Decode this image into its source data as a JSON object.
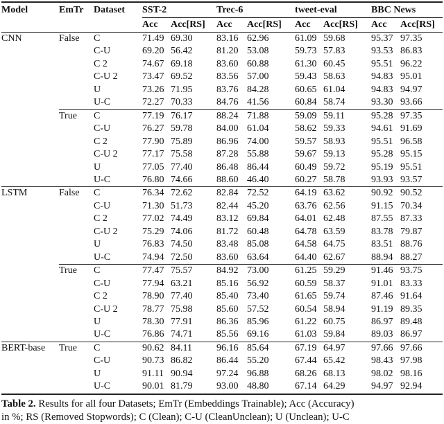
{
  "page": {
    "background": "#ffffff",
    "text_color": "#111111",
    "rule_color": "#222222"
  },
  "table": {
    "columns": {
      "model": "Model",
      "emtr": "EmTr",
      "dataset": "Dataset"
    },
    "groups": [
      {
        "label": "SST-2"
      },
      {
        "label": "Trec-6"
      },
      {
        "label": "tweet-eval"
      },
      {
        "label": "BBC News"
      }
    ],
    "subheaders": [
      "Acc",
      "Acc[RS]"
    ],
    "blocks": [
      {
        "model": "CNN",
        "emtr": "False",
        "rule": "none",
        "rows": [
          {
            "dataset": "C",
            "values": [
              "71.49",
              "69.30",
              "83.16",
              "62.96",
              "61.09",
              "59.68",
              "95.37",
              "97.35"
            ]
          },
          {
            "dataset": "C-U",
            "values": [
              "69.20",
              "56.42",
              "81.20",
              "53.08",
              "59.73",
              "57.83",
              "93.53",
              "86.83"
            ]
          },
          {
            "dataset": "C 2",
            "values": [
              "74.67",
              "69.18",
              "83.60",
              "60.88",
              "61.30",
              "60.45",
              "95.51",
              "96.22"
            ]
          },
          {
            "dataset": "C-U 2",
            "values": [
              "73.47",
              "69.52",
              "83.56",
              "57.00",
              "59.43",
              "58.63",
              "94.83",
              "95.01"
            ]
          },
          {
            "dataset": "U",
            "values": [
              "73.26",
              "71.95",
              "83.76",
              "84.28",
              "60.65",
              "61.04",
              "94.83",
              "94.97"
            ]
          },
          {
            "dataset": "U-C",
            "values": [
              "72.27",
              "70.33",
              "84.76",
              "41.56",
              "60.84",
              "58.74",
              "93.30",
              "93.66"
            ]
          }
        ]
      },
      {
        "model": "",
        "emtr": "True",
        "rule": "partial",
        "rows": [
          {
            "dataset": "C",
            "values": [
              "77.19",
              "76.17",
              "88.24",
              "71.88",
              "59.09",
              "59.11",
              "95.28",
              "97.35"
            ]
          },
          {
            "dataset": "C-U",
            "values": [
              "76.27",
              "59.78",
              "84.00",
              "61.04",
              "58.62",
              "59.33",
              "94.61",
              "91.69"
            ]
          },
          {
            "dataset": "C 2",
            "values": [
              "77.90",
              "75.89",
              "86.96",
              "74.00",
              "59.57",
              "58.93",
              "95.51",
              "96.58"
            ]
          },
          {
            "dataset": "C-U 2",
            "values": [
              "77.17",
              "75.58",
              "87.28",
              "55.88",
              "59.67",
              "59.13",
              "95.28",
              "95.15"
            ]
          },
          {
            "dataset": "U",
            "values": [
              "77.05",
              "77.40",
              "86.48",
              "86.44",
              "60.49",
              "59.72",
              "95.19",
              "95.51"
            ]
          },
          {
            "dataset": "U-C",
            "values": [
              "76.80",
              "74.66",
              "88.60",
              "46.40",
              "60.27",
              "58.78",
              "93.93",
              "93.57"
            ]
          }
        ]
      },
      {
        "model": "LSTM",
        "emtr": "False",
        "rule": "full",
        "rows": [
          {
            "dataset": "C",
            "values": [
              "76.34",
              "72.62",
              "82.84",
              "72.52",
              "64.19",
              "63.62",
              "90.92",
              "90.52"
            ]
          },
          {
            "dataset": "C-U",
            "values": [
              "71.30",
              "51.73",
              "82.44",
              "45.20",
              "63.76",
              "62.56",
              "91.15",
              "70.34"
            ]
          },
          {
            "dataset": "C 2",
            "values": [
              "77.02",
              "74.49",
              "83.12",
              "69.84",
              "64.01",
              "62.48",
              "87.55",
              "87.33"
            ]
          },
          {
            "dataset": "C-U 2",
            "values": [
              "75.29",
              "74.06",
              "81.72",
              "60.48",
              "64.78",
              "63.59",
              "83.78",
              "79.87"
            ]
          },
          {
            "dataset": "U",
            "values": [
              "76.83",
              "74.50",
              "83.48",
              "85.08",
              "64.58",
              "64.75",
              "83.51",
              "88.76"
            ]
          },
          {
            "dataset": "U-C",
            "values": [
              "74.94",
              "72.50",
              "83.60",
              "63.64",
              "64.40",
              "62.67",
              "88.94",
              "88.27"
            ]
          }
        ]
      },
      {
        "model": "",
        "emtr": "True",
        "rule": "partial",
        "rows": [
          {
            "dataset": "C",
            "values": [
              "77.47",
              "75.57",
              "84.92",
              "73.00",
              "61.25",
              "59.29",
              "91.46",
              "93.75"
            ]
          },
          {
            "dataset": "C-U",
            "values": [
              "77.94",
              "63.21",
              "85.16",
              "56.92",
              "60.59",
              "58.37",
              "91.01",
              "83.33"
            ]
          },
          {
            "dataset": "C 2",
            "values": [
              "78.90",
              "77.40",
              "85.40",
              "73.40",
              "61.65",
              "59.74",
              "87.46",
              "91.64"
            ]
          },
          {
            "dataset": "C-U 2",
            "values": [
              "78.77",
              "75.98",
              "85.60",
              "57.52",
              "60.54",
              "58.94",
              "91.19",
              "89.35"
            ]
          },
          {
            "dataset": "U",
            "values": [
              "78.30",
              "77.91",
              "86.36",
              "85.96",
              "61.22",
              "60.75",
              "86.97",
              "89.48"
            ]
          },
          {
            "dataset": "U-C",
            "values": [
              "76.86",
              "74.71",
              "85.56",
              "69.16",
              "61.03",
              "59.84",
              "89.03",
              "86.97"
            ]
          }
        ]
      },
      {
        "model": "BERT-base",
        "emtr": "True",
        "rule": "full",
        "rows": [
          {
            "dataset": "C",
            "values": [
              "90.62",
              "84.11",
              "96.16",
              "85.64",
              "67.19",
              "64.97",
              "97.66",
              "97.66"
            ]
          },
          {
            "dataset": "C-U",
            "values": [
              "90.73",
              "86.82",
              "86.44",
              "55.20",
              "67.44",
              "65.42",
              "98.43",
              "97.98"
            ]
          },
          {
            "dataset": "U",
            "values": [
              "91.11",
              "90.94",
              "97.24",
              "96.88",
              "68.26",
              "68.13",
              "98.02",
              "98.16"
            ]
          },
          {
            "dataset": "U-C",
            "values": [
              "90.01",
              "81.79",
              "93.00",
              "48.80",
              "67.14",
              "64.29",
              "94.97",
              "92.94"
            ]
          }
        ]
      }
    ],
    "caption": {
      "label": "Table 2.",
      "line1": "Results for all four Datasets; EmTr (Embeddings Trainable); Acc (Accuracy)",
      "line2": "in %; RS (Removed Stopwords); C (Clean); C-U (CleanUnclean); U (Unclean); U-C"
    }
  }
}
